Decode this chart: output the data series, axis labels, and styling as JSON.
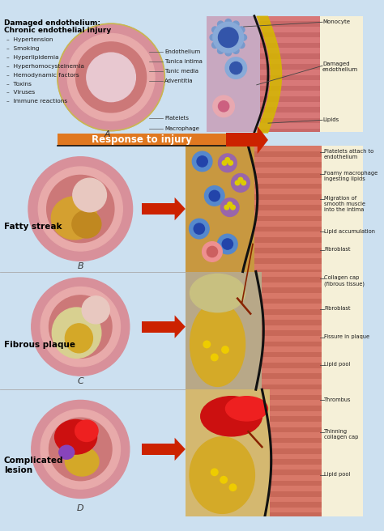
{
  "bg_color": "#cce0f0",
  "title_panel_A_line1": "Damaged endothelium:",
  "title_panel_A_line2": "Chronic endothelial injury",
  "causes": [
    "Hypertension",
    "Smoking",
    "Hyperlipidemia",
    "Hyperhomocysteinemia",
    "Hemodynamic factors",
    "Toxins",
    "Viruses",
    "Immune reactions"
  ],
  "panel_A_labels": [
    [
      "Endothelium",
      22
    ],
    [
      "Tunica intima",
      34
    ],
    [
      "Tunic media",
      47
    ],
    [
      "Adventitia",
      60
    ],
    [
      "Platelets",
      108
    ],
    [
      "Macrophage",
      122
    ]
  ],
  "panel_A_right_labels": [
    "Monocyte",
    "Damaged\nendothelium",
    "Lipids"
  ],
  "response_arrow_text": "Response to injury",
  "panel_B_title": "Fatty streak",
  "panel_B_letter": "B",
  "panel_B_right_labels": [
    "Platelets attach to\nendothelium",
    "Foamy macrophage\ningesting lipids",
    "Migration of\nsmooth muscle\ninto the intima",
    "Lipid accumulation",
    "Fibroblast"
  ],
  "panel_C_title": "Fibrous plaque",
  "panel_C_letter": "C",
  "panel_C_right_labels": [
    "Collagen cap\n(fibrous tissue)",
    "Fibroblast",
    "Fissure in plaque",
    "Lipid pool"
  ],
  "panel_D_title": "Complicated\nlesion",
  "panel_D_letter": "D",
  "panel_D_right_labels": [
    "Thrombus",
    "Thinning\ncollagen cap",
    "Lipid pool"
  ],
  "arrow_color": "#cc2200",
  "response_bar_color": "#e07820",
  "text_color_dark": "#1a1a1a",
  "text_color_bold": "#000000",
  "cream_right_bg": "#f5f0d8",
  "figsize": [
    4.74,
    6.56
  ],
  "dpi": 100
}
